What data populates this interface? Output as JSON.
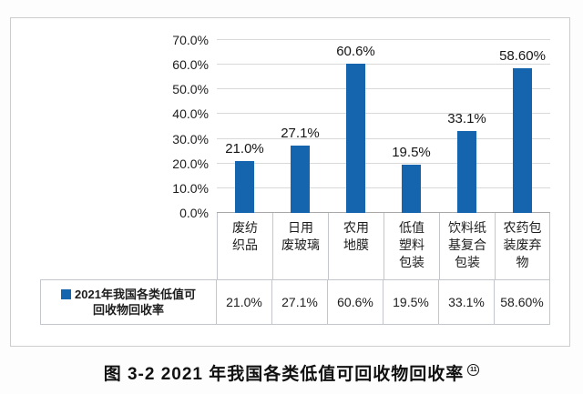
{
  "chart_data": {
    "type": "bar",
    "title": "图 3-2  2021 年我国各类低值可回收物回收率",
    "series_name": "2021年我国各类低值可回收物回收率",
    "categories": [
      "废纺织品",
      "日用废玻璃",
      "农用地膜",
      "低值塑料包装",
      "饮料纸基复合包装",
      "农药包装废弃物"
    ],
    "categories_wrapped": [
      [
        "废纺",
        "织品"
      ],
      [
        "日用",
        "废玻璃"
      ],
      [
        "农用",
        "地膜"
      ],
      [
        "低值",
        "塑料",
        "包装"
      ],
      [
        "饮料纸",
        "基复合",
        "包装"
      ],
      [
        "农药包",
        "装废弃",
        "物"
      ]
    ],
    "values": [
      21.0,
      27.1,
      60.6,
      19.5,
      33.1,
      58.6
    ],
    "value_labels": [
      "21.0%",
      "27.1%",
      "60.6%",
      "19.5%",
      "33.1%",
      "58.60%"
    ],
    "ylim": [
      0,
      70
    ],
    "ytick_step": 10,
    "ytick_labels": [
      "0.0%",
      "10.0%",
      "20.0%",
      "30.0%",
      "40.0%",
      "50.0%",
      "60.0%",
      "70.0%"
    ],
    "grid": true,
    "legend_position": "bottom-table",
    "bar_color": "#1565ae"
  },
  "legend_table": {
    "series_label_line1": "2021年我国各类低值可",
    "series_label_line2": "回收物回收率",
    "values": [
      "21.0%",
      "27.1%",
      "60.6%",
      "19.5%",
      "33.1%",
      "58.60%"
    ]
  },
  "caption": {
    "text": "图 3-2  2021 年我国各类低值可回收物回收率",
    "footnote_marker": "11"
  },
  "colors": {
    "bar": "#1565ae",
    "gridline": "#d9d9d9",
    "axis_line": "#a9a9a9",
    "table_border": "#c3c7cd",
    "panel_border": "#cdcdcd",
    "text": "#1d1d1d"
  }
}
